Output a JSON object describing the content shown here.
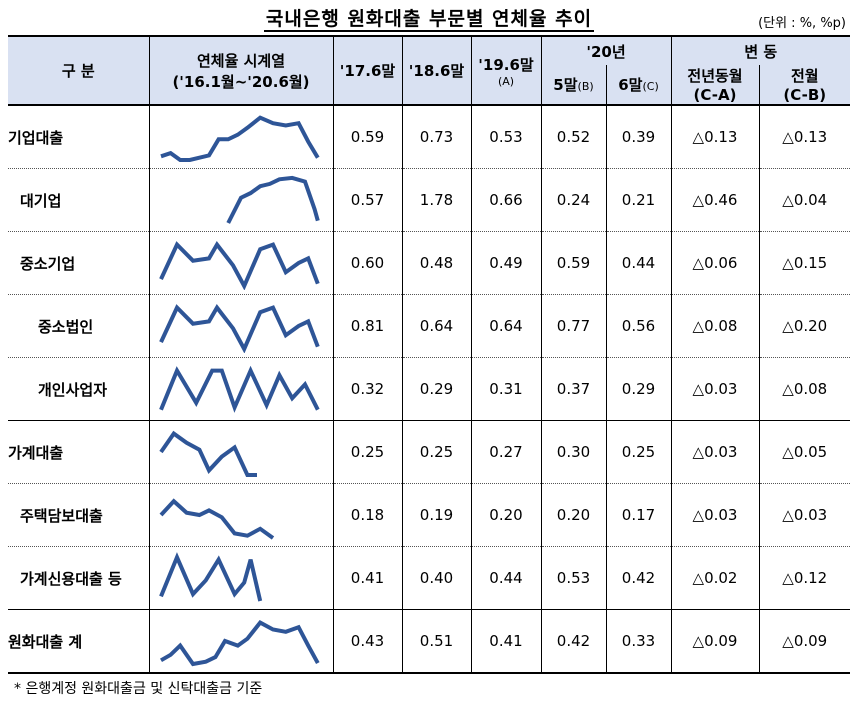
{
  "title": "국내은행 원화대출 부문별 연체율 추이",
  "unit": "(단위 : %, %p)",
  "header": {
    "category": "구  분",
    "series_col_line1": "연체율 시계열",
    "series_col_line2": "('16.1월~'20.6월)",
    "c1": "'17.6말",
    "c2": "'18.6말",
    "c3_line1": "'19.6말",
    "c3_line2": "(A)",
    "c20": "'20년",
    "c4": "5말",
    "c4_sub": "(B)",
    "c5": "6말",
    "c5_sub": "(C)",
    "change": "변 동",
    "c6_line1": "전년동월",
    "c6_line2": "(C-A)",
    "c7_line1": "전월",
    "c7_line2": "(C-B)"
  },
  "rows": [
    {
      "label": "기업대출",
      "v1": "0.59",
      "v2": "0.73",
      "v3": "0.53",
      "v4": "0.52",
      "v5": "0.39",
      "d1": "△0.13",
      "d2": "△0.13",
      "spark": [
        [
          0,
          0.92
        ],
        [
          0.06,
          0.85
        ],
        [
          0.12,
          1.0
        ],
        [
          0.18,
          1.0
        ],
        [
          0.24,
          0.95
        ],
        [
          0.3,
          0.9
        ],
        [
          0.36,
          0.55
        ],
        [
          0.42,
          0.55
        ],
        [
          0.48,
          0.45
        ],
        [
          0.54,
          0.3
        ],
        [
          0.62,
          0.08
        ],
        [
          0.7,
          0.2
        ],
        [
          0.78,
          0.25
        ],
        [
          0.86,
          0.2
        ],
        [
          0.92,
          0.6
        ],
        [
          0.98,
          0.95
        ]
      ]
    },
    {
      "label": "대기업",
      "v1": "0.57",
      "v2": "1.78",
      "v3": "0.66",
      "v4": "0.24",
      "v5": "0.21",
      "d1": "△0.46",
      "d2": "△0.04",
      "spark": [
        [
          0.42,
          1.0
        ],
        [
          0.5,
          0.45
        ],
        [
          0.56,
          0.35
        ],
        [
          0.62,
          0.2
        ],
        [
          0.68,
          0.15
        ],
        [
          0.74,
          0.05
        ],
        [
          0.82,
          0.02
        ],
        [
          0.9,
          0.1
        ],
        [
          0.96,
          0.7
        ],
        [
          0.98,
          0.95
        ]
      ]
    },
    {
      "label": "중소기업",
      "v1": "0.60",
      "v2": "0.48",
      "v3": "0.49",
      "v4": "0.59",
      "v5": "0.44",
      "d1": "△0.06",
      "d2": "△0.15",
      "spark": [
        [
          0,
          0.85
        ],
        [
          0.1,
          0.1
        ],
        [
          0.2,
          0.45
        ],
        [
          0.3,
          0.4
        ],
        [
          0.35,
          0.1
        ],
        [
          0.45,
          0.55
        ],
        [
          0.52,
          1.0
        ],
        [
          0.62,
          0.2
        ],
        [
          0.7,
          0.1
        ],
        [
          0.78,
          0.7
        ],
        [
          0.86,
          0.5
        ],
        [
          0.92,
          0.4
        ],
        [
          0.98,
          0.95
        ]
      ]
    },
    {
      "label": "중소법인",
      "v1": "0.81",
      "v2": "0.64",
      "v3": "0.64",
      "v4": "0.77",
      "v5": "0.56",
      "d1": "△0.08",
      "d2": "△0.20",
      "spark": [
        [
          0,
          0.85
        ],
        [
          0.1,
          0.1
        ],
        [
          0.2,
          0.45
        ],
        [
          0.3,
          0.4
        ],
        [
          0.35,
          0.1
        ],
        [
          0.45,
          0.55
        ],
        [
          0.52,
          1.0
        ],
        [
          0.62,
          0.2
        ],
        [
          0.7,
          0.1
        ],
        [
          0.78,
          0.7
        ],
        [
          0.86,
          0.5
        ],
        [
          0.92,
          0.4
        ],
        [
          0.98,
          0.95
        ]
      ]
    },
    {
      "label": "개인사업자",
      "v1": "0.32",
      "v2": "0.29",
      "v3": "0.31",
      "v4": "0.37",
      "v5": "0.29",
      "d1": "△0.03",
      "d2": "△0.08",
      "spark": [
        [
          0,
          0.95
        ],
        [
          0.1,
          0.1
        ],
        [
          0.22,
          0.8
        ],
        [
          0.32,
          0.1
        ],
        [
          0.38,
          0.1
        ],
        [
          0.46,
          0.9
        ],
        [
          0.56,
          0.1
        ],
        [
          0.66,
          0.85
        ],
        [
          0.74,
          0.2
        ],
        [
          0.82,
          0.7
        ],
        [
          0.9,
          0.4
        ],
        [
          0.98,
          0.95
        ]
      ]
    },
    {
      "label": "가계대출",
      "v1": "0.25",
      "v2": "0.25",
      "v3": "0.27",
      "v4": "0.30",
      "v5": "0.25",
      "d1": "△0.03",
      "d2": "△0.05",
      "spark": [
        [
          0,
          0.5
        ],
        [
          0.08,
          0.1
        ],
        [
          0.16,
          0.3
        ],
        [
          0.24,
          0.45
        ],
        [
          0.3,
          0.9
        ],
        [
          0.38,
          0.6
        ],
        [
          0.46,
          0.4
        ],
        [
          0.54,
          1.0
        ],
        [
          0.6,
          1.0
        ]
      ]
    },
    {
      "label": "주택담보대출",
      "v1": "0.18",
      "v2": "0.19",
      "v3": "0.20",
      "v4": "0.20",
      "v5": "0.17",
      "d1": "△0.03",
      "d2": "△0.03",
      "spark": [
        [
          0,
          0.5
        ],
        [
          0.08,
          0.2
        ],
        [
          0.16,
          0.45
        ],
        [
          0.24,
          0.5
        ],
        [
          0.3,
          0.4
        ],
        [
          0.38,
          0.55
        ],
        [
          0.46,
          0.9
        ],
        [
          0.54,
          0.95
        ],
        [
          0.62,
          0.8
        ],
        [
          0.7,
          1.0
        ]
      ]
    },
    {
      "label": "가계신용대출 등",
      "v1": "0.41",
      "v2": "0.40",
      "v3": "0.44",
      "v4": "0.53",
      "v5": "0.42",
      "d1": "△0.02",
      "d2": "△0.12",
      "spark": [
        [
          0,
          0.9
        ],
        [
          0.1,
          0.05
        ],
        [
          0.2,
          0.85
        ],
        [
          0.28,
          0.55
        ],
        [
          0.36,
          0.1
        ],
        [
          0.46,
          0.85
        ],
        [
          0.52,
          0.6
        ],
        [
          0.56,
          0.1
        ],
        [
          0.62,
          1.0
        ]
      ]
    },
    {
      "label": "원화대출 계",
      "v1": "0.43",
      "v2": "0.51",
      "v3": "0.41",
      "v4": "0.42",
      "v5": "0.33",
      "d1": "△0.09",
      "d2": "△0.09",
      "spark": [
        [
          0,
          0.92
        ],
        [
          0.06,
          0.8
        ],
        [
          0.12,
          0.6
        ],
        [
          0.2,
          1.0
        ],
        [
          0.28,
          0.95
        ],
        [
          0.34,
          0.85
        ],
        [
          0.4,
          0.5
        ],
        [
          0.48,
          0.6
        ],
        [
          0.54,
          0.45
        ],
        [
          0.62,
          0.1
        ],
        [
          0.7,
          0.25
        ],
        [
          0.78,
          0.3
        ],
        [
          0.86,
          0.2
        ],
        [
          0.92,
          0.6
        ],
        [
          0.98,
          0.98
        ]
      ]
    }
  ],
  "footnote": "* 은행계정 원화대출금 및 신탁대출금 기준"
}
